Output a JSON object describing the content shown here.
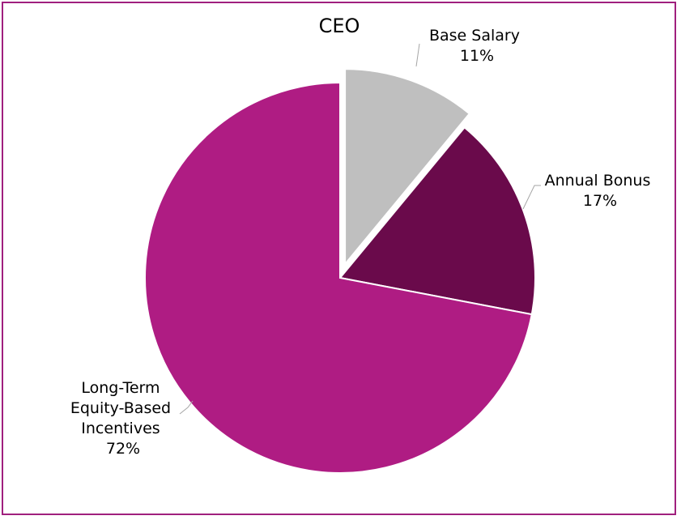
{
  "chart_data": {
    "type": "pie",
    "title": "CEO",
    "exploded": "Base Salary",
    "slices": [
      {
        "name": "Base Salary",
        "value": 11,
        "value_label": "11%",
        "color": "#bfbfbf"
      },
      {
        "name": "Annual Bonus",
        "value": 17,
        "value_label": "17%",
        "color": "#6a0a4b"
      },
      {
        "name_lines": [
          "Long-Term",
          "Equity-Based",
          "Incentives"
        ],
        "value": 72,
        "value_label": "72%",
        "color": "#af1c83"
      }
    ]
  }
}
